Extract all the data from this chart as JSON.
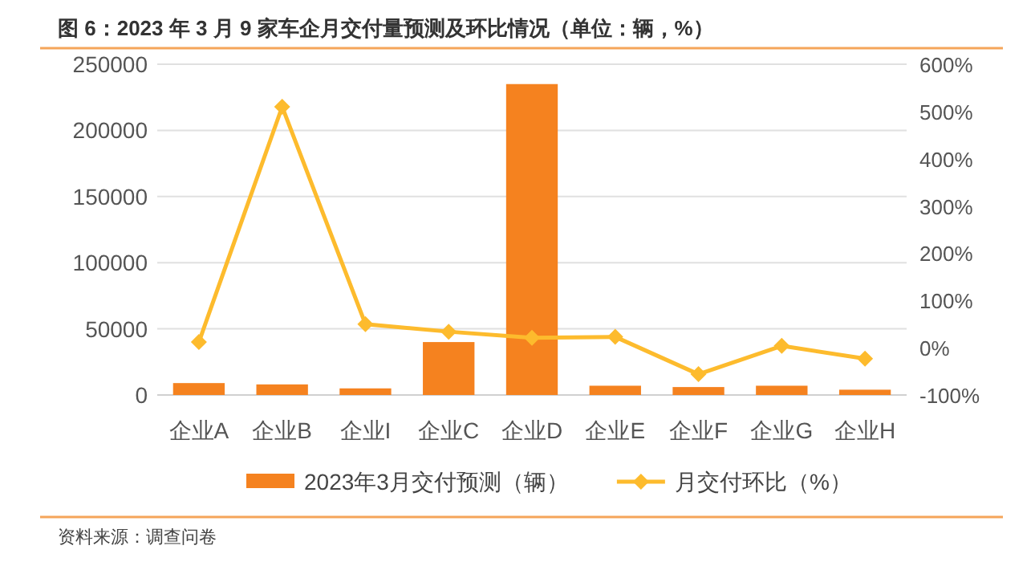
{
  "chart_data": {
    "type": "bar",
    "title": "图 6：2023 年 3 月 9 家车企月交付量预测及环比情况（单位：辆，%）",
    "categories": [
      "企业A",
      "企业B",
      "企业I",
      "企业C",
      "企业D",
      "企业E",
      "企业F",
      "企业G",
      "企业H"
    ],
    "series": [
      {
        "name": "2023年3月交付预测（辆）",
        "color": "#f5821f",
        "values": [
          9000,
          8000,
          5000,
          40000,
          235000,
          7000,
          6000,
          7000,
          4000
        ]
      },
      {
        "name": "月交付环比（%）",
        "type": "line",
        "axis": "y2",
        "color": "#fdbb2d",
        "marker": "diamond",
        "values": [
          12,
          510,
          50,
          34,
          21,
          23,
          -56,
          4,
          -23
        ]
      }
    ],
    "ylim": [
      0,
      250000
    ],
    "yticks": [
      0,
      50000,
      100000,
      150000,
      200000,
      250000
    ],
    "y2lim": [
      -100,
      600
    ],
    "y2ticks": [
      {
        "value": -100,
        "label": "-100%"
      },
      {
        "value": 0,
        "label": "0%"
      },
      {
        "value": 100,
        "label": "100%"
      },
      {
        "value": 200,
        "label": "200%"
      },
      {
        "value": 300,
        "label": "300%"
      },
      {
        "value": 400,
        "label": "400%"
      },
      {
        "value": 500,
        "label": "500%"
      },
      {
        "value": 600,
        "label": "600%"
      }
    ],
    "grid": "y",
    "legend": "bottom",
    "annotations": [
      "资料来源：调查问卷"
    ]
  }
}
